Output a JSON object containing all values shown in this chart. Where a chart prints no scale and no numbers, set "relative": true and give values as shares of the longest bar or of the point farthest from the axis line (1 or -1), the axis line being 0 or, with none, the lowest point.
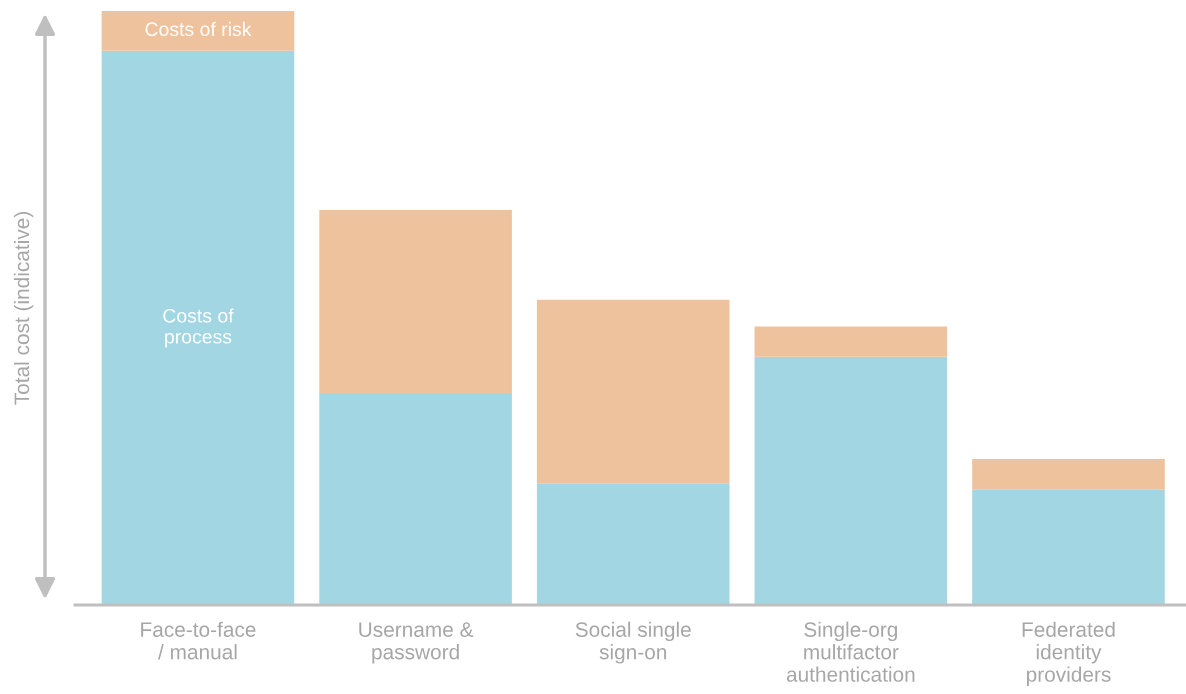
{
  "chart_data": {
    "type": "bar",
    "stacked": true,
    "relative": true,
    "ylabel": "Total cost (indicative)",
    "categories": [
      "Face-to-face\n/ manual",
      "Username &\npassword",
      "Social single\nsign-on",
      "Single-org\nmultifactor\nauthentication",
      "Federated\nidentity\nproviders"
    ],
    "series": [
      {
        "name": "Costs of\nprocess",
        "color": "#a2d6e2",
        "values": [
          0.933,
          0.357,
          0.204,
          0.418,
          0.194
        ]
      },
      {
        "name": "Costs of risk",
        "color": "#efc29e",
        "values": [
          0.067,
          0.308,
          0.31,
          0.051,
          0.052
        ]
      }
    ]
  }
}
